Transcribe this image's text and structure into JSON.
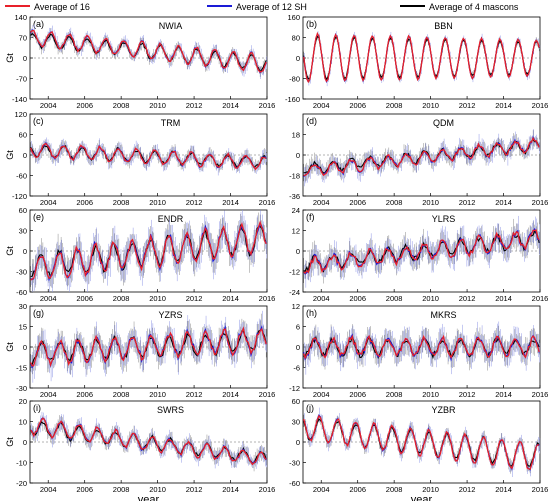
{
  "legend": {
    "items": [
      {
        "label": "Average of 16",
        "color": "#e8202a"
      },
      {
        "label": "Average of 12 SH",
        "color": "#1a1ad6"
      },
      {
        "label": "Average of 4 mascons",
        "color": "#000000"
      }
    ]
  },
  "chart_data": [
    {
      "type": "line",
      "panel": "(a)",
      "title": "NWIA",
      "ylabel": "Gt",
      "xlabel": "",
      "ylim": [
        -140,
        140
      ],
      "yticks": [
        -140,
        -70,
        0,
        70,
        140
      ],
      "xlim": [
        2003,
        2016
      ],
      "xticks": [
        "2004",
        "2006",
        "2008",
        "2010",
        "2012",
        "2014",
        "2016"
      ],
      "wave": {
        "mean0": 70,
        "trend": -7,
        "amp0": 25,
        "amp1": 30,
        "phase": 0.1,
        "noise": 8
      },
      "series": [
        {
          "name": "Average of 16"
        },
        {
          "name": "Average of 12 SH"
        },
        {
          "name": "Average of 4 mascons"
        }
      ]
    },
    {
      "type": "line",
      "panel": "(b)",
      "title": "BBN",
      "ylabel": "",
      "xlabel": "",
      "ylim": [
        -160,
        160
      ],
      "yticks": [
        -160,
        -80,
        0,
        80,
        160
      ],
      "xlim": [
        2003,
        2016
      ],
      "xticks": [
        "2004",
        "2006",
        "2008",
        "2010",
        "2012",
        "2014",
        "2016"
      ],
      "wave": {
        "mean0": 0,
        "trend": 0,
        "amp0": 95,
        "amp1": 70,
        "phase": 0.45,
        "noise": 6
      },
      "series": [
        {
          "name": "Average of 16"
        },
        {
          "name": "Average of 12 SH"
        },
        {
          "name": "Average of 4 mascons"
        }
      ]
    },
    {
      "type": "line",
      "panel": "(c)",
      "title": "TRM",
      "ylabel": "Gt",
      "xlabel": "",
      "ylim": [
        -120,
        120
      ],
      "yticks": [
        -120,
        -60,
        0,
        60,
        120
      ],
      "xlim": [
        2003,
        2016
      ],
      "xticks": [
        "2004",
        "2006",
        "2008",
        "2010",
        "2012",
        "2014",
        "2016"
      ],
      "wave": {
        "mean0": 15,
        "trend": -3,
        "amp0": 20,
        "amp1": 18,
        "phase": 0.4,
        "noise": 8
      },
      "series": [
        {
          "name": "Average of 16"
        },
        {
          "name": "Average of 12 SH"
        },
        {
          "name": "Average of 4 mascons"
        }
      ]
    },
    {
      "type": "line",
      "panel": "(d)",
      "title": "QDM",
      "ylabel": "",
      "xlabel": "",
      "ylim": [
        -36,
        36
      ],
      "yticks": [
        -36,
        -18,
        0,
        18
      ],
      "xlim": [
        2003,
        2016
      ],
      "xticks": [
        "2004",
        "2006",
        "2008",
        "2010",
        "2012",
        "2014",
        "2016"
      ],
      "wave": {
        "mean0": -14,
        "trend": 1.8,
        "amp0": 5,
        "amp1": 5,
        "phase": 0.6,
        "noise": 3
      },
      "series": [
        {
          "name": "Average of 16"
        },
        {
          "name": "Average of 12 SH"
        },
        {
          "name": "Average of 4 mascons"
        }
      ]
    },
    {
      "type": "line",
      "panel": "(e)",
      "title": "ENDR",
      "ylabel": "Gt",
      "xlabel": "",
      "ylim": [
        -60,
        60
      ],
      "yticks": [
        -60,
        -30,
        0,
        30,
        60
      ],
      "xlim": [
        2003,
        2016
      ],
      "xticks": [
        "2004",
        "2006",
        "2008",
        "2010",
        "2012",
        "2014",
        "2016"
      ],
      "wave": {
        "mean0": -25,
        "trend": 3.5,
        "amp0": 18,
        "amp1": 22,
        "phase": 0.65,
        "noise": 9
      },
      "series": [
        {
          "name": "Average of 16"
        },
        {
          "name": "Average of 12 SH"
        },
        {
          "name": "Average of 4 mascons"
        }
      ]
    },
    {
      "type": "line",
      "panel": "(f)",
      "title": "YLRS",
      "ylabel": "",
      "xlabel": "",
      "ylim": [
        -24,
        24
      ],
      "yticks": [
        -24,
        -12,
        0,
        12,
        24
      ],
      "xlim": [
        2003,
        2016
      ],
      "xticks": [
        "2004",
        "2006",
        "2008",
        "2010",
        "2012",
        "2014",
        "2016"
      ],
      "wave": {
        "mean0": -9,
        "trend": 1.3,
        "amp0": 4,
        "amp1": 5,
        "phase": 0.6,
        "noise": 3
      },
      "series": [
        {
          "name": "Average of 16"
        },
        {
          "name": "Average of 12 SH"
        },
        {
          "name": "Average of 4 mascons"
        }
      ]
    },
    {
      "type": "line",
      "panel": "(g)",
      "title": "YZRS",
      "ylabel": "Gt",
      "xlabel": "",
      "ylim": [
        -30,
        30
      ],
      "yticks": [
        -30,
        -15,
        0,
        15,
        30
      ],
      "xlim": [
        2003,
        2016
      ],
      "xticks": [
        "2004",
        "2006",
        "2008",
        "2010",
        "2012",
        "2014",
        "2016"
      ],
      "wave": {
        "mean0": -5,
        "trend": 0.8,
        "amp0": 8,
        "amp1": 8,
        "phase": 0.6,
        "noise": 4
      },
      "series": [
        {
          "name": "Average of 16"
        },
        {
          "name": "Average of 12 SH"
        },
        {
          "name": "Average of 4 mascons"
        }
      ]
    },
    {
      "type": "line",
      "panel": "(h)",
      "title": "MKRS",
      "ylabel": "",
      "xlabel": "",
      "ylim": [
        -12,
        12
      ],
      "yticks": [
        -12,
        -6,
        0,
        6,
        12
      ],
      "xlim": [
        2003,
        2016
      ],
      "xticks": [
        "2004",
        "2006",
        "2008",
        "2010",
        "2012",
        "2014",
        "2016"
      ],
      "wave": {
        "mean0": 0,
        "trend": 0,
        "amp0": 2.5,
        "amp1": 2.5,
        "phase": 0.6,
        "noise": 1.5
      },
      "series": [
        {
          "name": "Average of 16"
        },
        {
          "name": "Average of 12 SH"
        },
        {
          "name": "Average of 4 mascons"
        }
      ]
    },
    {
      "type": "line",
      "panel": "(i)",
      "title": "SWRS",
      "ylabel": "Gt",
      "xlabel": "year",
      "ylim": [
        -20,
        20
      ],
      "yticks": [
        -20,
        -10,
        0,
        10,
        20
      ],
      "xlim": [
        2003,
        2016
      ],
      "xticks": [
        "2004",
        "2006",
        "2008",
        "2010",
        "2012",
        "2014",
        "2016"
      ],
      "wave": {
        "mean0": 8,
        "trend": -1.3,
        "amp0": 4,
        "amp1": 3,
        "phase": 0.55,
        "noise": 1.5
      },
      "series": [
        {
          "name": "Average of 16"
        },
        {
          "name": "Average of 12 SH"
        },
        {
          "name": "Average of 4 mascons"
        }
      ]
    },
    {
      "type": "line",
      "panel": "(j)",
      "title": "YZBR",
      "ylabel": "",
      "xlabel": "year",
      "ylim": [
        -60,
        60
      ],
      "yticks": [
        -60,
        -30,
        0,
        30,
        60
      ],
      "xlim": [
        2003,
        2016
      ],
      "xticks": [
        "2004",
        "2006",
        "2008",
        "2010",
        "2012",
        "2014",
        "2016"
      ],
      "wave": {
        "mean0": 22,
        "trend": -3.5,
        "amp0": 18,
        "amp1": 20,
        "phase": 0.35,
        "noise": 4
      },
      "series": [
        {
          "name": "Average of 16"
        },
        {
          "name": "Average of 12 SH"
        },
        {
          "name": "Average of 4 mascons"
        }
      ]
    }
  ]
}
